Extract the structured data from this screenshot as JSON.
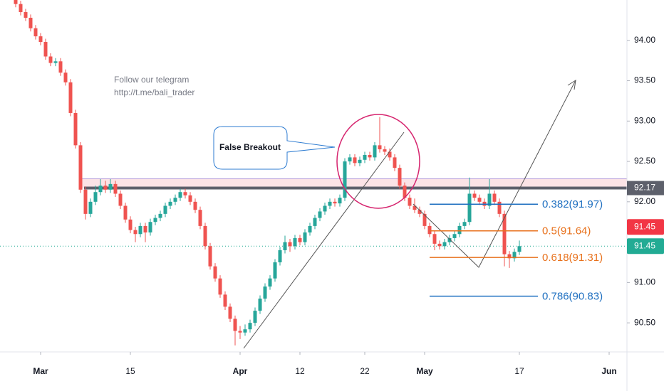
{
  "chart_data": {
    "type": "candlestick",
    "categories": [
      null,
      null,
      null,
      null,
      null,
      "Mar",
      null,
      null,
      null,
      null,
      null,
      null,
      null,
      null,
      null,
      null,
      null,
      null,
      null,
      null,
      null,
      null,
      null,
      "15",
      null,
      null,
      null,
      null,
      null,
      null,
      null,
      null,
      null,
      null,
      null,
      null,
      null,
      null,
      null,
      null,
      null,
      null,
      null,
      null,
      null,
      "Apr",
      null,
      null,
      null,
      null,
      null,
      null,
      null,
      null,
      null,
      null,
      null,
      "12",
      null,
      null,
      null,
      null,
      null,
      null,
      null,
      null,
      null,
      null,
      null,
      null,
      "22",
      null,
      null,
      null,
      null,
      null,
      null,
      null,
      null,
      null,
      null,
      null,
      "May",
      null,
      null,
      null,
      null,
      null,
      null,
      null,
      null,
      null,
      null,
      null,
      null,
      null,
      null,
      null,
      null,
      null,
      null,
      "17",
      null,
      null,
      null,
      null,
      null,
      null,
      null,
      null,
      null,
      null,
      null,
      null,
      null,
      null,
      null,
      null,
      null,
      "Jun",
      null,
      null,
      null
    ],
    "open": [
      94.5,
      94.45,
      94.35,
      94.28,
      94.15,
      94.05,
      93.98,
      93.8,
      93.72,
      93.74,
      93.6,
      93.48,
      93.1,
      92.7,
      92.15,
      91.85,
      92.0,
      92.12,
      92.2,
      92.15,
      92.22,
      92.1,
      91.95,
      91.78,
      91.65,
      91.6,
      91.7,
      91.62,
      91.75,
      91.8,
      91.85,
      91.95,
      92.0,
      92.05,
      92.12,
      92.08,
      92.0,
      91.9,
      91.7,
      91.45,
      91.2,
      91.05,
      90.85,
      90.7,
      90.55,
      90.4,
      90.38,
      90.42,
      90.5,
      90.65,
      90.8,
      90.95,
      91.05,
      91.25,
      91.4,
      91.5,
      91.45,
      91.55,
      91.5,
      91.62,
      91.7,
      91.8,
      91.88,
      91.95,
      92.0,
      91.98,
      92.05,
      92.5,
      92.55,
      92.48,
      92.52,
      92.58,
      92.55,
      92.7,
      92.65,
      92.62,
      92.55,
      92.42,
      92.2,
      92.05,
      91.95,
      91.9,
      91.85,
      91.7,
      91.6,
      91.48,
      91.45,
      91.5,
      91.55,
      91.6,
      91.7,
      91.75,
      92.1,
      92.05,
      92.0,
      91.95,
      92.1,
      92.0,
      91.85,
      91.35,
      91.3,
      91.38,
      null,
      null,
      null,
      null,
      null,
      null,
      null,
      null,
      null,
      null,
      null,
      null,
      null,
      null,
      null,
      null,
      null,
      null,
      null,
      null,
      null
    ],
    "high": [
      94.54,
      94.49,
      94.39,
      94.32,
      94.19,
      94.09,
      94.02,
      93.84,
      93.78,
      93.78,
      93.64,
      93.52,
      93.14,
      92.74,
      92.19,
      92.04,
      92.2,
      92.28,
      92.26,
      92.28,
      92.26,
      92.14,
      91.99,
      91.82,
      91.69,
      91.74,
      91.74,
      91.79,
      91.84,
      91.89,
      91.99,
      92.04,
      92.09,
      92.16,
      92.16,
      92.12,
      92.04,
      91.94,
      91.74,
      91.49,
      91.24,
      91.09,
      90.89,
      90.74,
      90.59,
      90.46,
      90.48,
      90.54,
      90.69,
      90.84,
      90.99,
      91.09,
      91.29,
      91.44,
      91.58,
      91.54,
      91.59,
      91.59,
      91.66,
      91.74,
      91.84,
      91.92,
      91.99,
      92.04,
      92.04,
      92.09,
      92.54,
      92.59,
      92.59,
      92.56,
      92.62,
      92.62,
      92.74,
      93.05,
      92.69,
      92.66,
      92.59,
      92.46,
      92.24,
      92.09,
      92.04,
      91.94,
      91.89,
      91.74,
      91.64,
      91.52,
      91.54,
      91.59,
      91.64,
      91.74,
      91.79,
      92.3,
      92.14,
      92.09,
      92.04,
      92.28,
      92.14,
      92.04,
      91.89,
      91.39,
      91.42,
      91.52,
      null,
      null,
      null,
      null,
      null,
      null,
      null,
      null,
      null,
      null,
      null,
      null,
      null,
      null,
      null,
      null,
      null,
      null,
      null,
      null,
      null
    ],
    "low": [
      94.41,
      94.31,
      94.24,
      94.11,
      94.01,
      93.94,
      93.76,
      93.68,
      93.68,
      93.56,
      93.44,
      93.06,
      92.66,
      92.11,
      91.78,
      91.81,
      91.96,
      92.08,
      92.11,
      92.11,
      92.06,
      91.91,
      91.74,
      91.61,
      91.5,
      91.56,
      91.5,
      91.58,
      91.71,
      91.76,
      91.81,
      91.91,
      91.96,
      92.01,
      92.04,
      91.96,
      91.86,
      91.66,
      91.41,
      91.16,
      91.01,
      90.81,
      90.66,
      90.51,
      90.22,
      90.3,
      90.34,
      90.38,
      90.46,
      90.61,
      90.76,
      90.91,
      91.01,
      91.21,
      91.36,
      91.38,
      91.41,
      91.46,
      91.46,
      91.58,
      91.66,
      91.76,
      91.84,
      91.91,
      91.94,
      91.94,
      92.01,
      92.46,
      92.44,
      92.44,
      92.48,
      92.51,
      92.51,
      92.61,
      92.58,
      92.51,
      92.38,
      92.16,
      92.01,
      91.91,
      91.86,
      91.81,
      91.66,
      91.56,
      91.4,
      91.41,
      91.41,
      91.46,
      91.51,
      91.56,
      91.66,
      91.71,
      92.01,
      91.96,
      91.91,
      91.91,
      91.96,
      91.81,
      91.2,
      91.18,
      91.26,
      91.34,
      null,
      null,
      null,
      null,
      null,
      null,
      null,
      null,
      null,
      null,
      null,
      null,
      null,
      null,
      null,
      null,
      null,
      null,
      null,
      null,
      null
    ],
    "close": [
      94.45,
      94.35,
      94.28,
      94.15,
      94.05,
      93.98,
      93.8,
      93.72,
      93.74,
      93.6,
      93.48,
      93.1,
      92.7,
      92.15,
      91.85,
      92.0,
      92.12,
      92.2,
      92.15,
      92.22,
      92.1,
      91.95,
      91.78,
      91.65,
      91.6,
      91.7,
      91.62,
      91.75,
      91.8,
      91.85,
      91.95,
      92.0,
      92.05,
      92.12,
      92.08,
      92.0,
      91.9,
      91.7,
      91.45,
      91.2,
      91.05,
      90.85,
      90.7,
      90.55,
      90.4,
      90.38,
      90.42,
      90.5,
      90.65,
      90.8,
      90.95,
      91.05,
      91.25,
      91.4,
      91.5,
      91.45,
      91.55,
      91.5,
      91.62,
      91.7,
      91.8,
      91.88,
      91.95,
      92.0,
      91.98,
      92.05,
      92.5,
      92.55,
      92.48,
      92.52,
      92.58,
      92.55,
      92.7,
      92.65,
      92.62,
      92.55,
      92.42,
      92.2,
      92.05,
      91.95,
      91.9,
      91.85,
      91.7,
      91.6,
      91.48,
      91.45,
      91.5,
      91.55,
      91.6,
      91.7,
      91.75,
      92.1,
      92.05,
      92.0,
      91.95,
      92.1,
      92.0,
      91.85,
      91.35,
      91.3,
      91.38,
      91.45,
      null,
      null,
      null,
      null,
      null,
      null,
      null,
      null,
      null,
      null,
      null,
      null,
      null,
      null,
      null,
      null,
      null,
      null,
      null,
      null,
      null
    ],
    "up_color": "#26a69a",
    "down_color": "#ef5350",
    "ylim": [
      90.14,
      94.5
    ],
    "yticks": [
      {
        "value": 90.5,
        "label": "90.50"
      },
      {
        "value": 91,
        "label": "91.00"
      },
      {
        "value": 91.5,
        "label": "91.50"
      },
      {
        "value": 92,
        "label": "92.00"
      },
      {
        "value": 92.5,
        "label": "92.50"
      },
      {
        "value": 93,
        "label": "93.00"
      },
      {
        "value": 93.5,
        "label": "93.50"
      },
      {
        "value": 94,
        "label": "94.00"
      }
    ],
    "resistance": 92.17,
    "price_tags": [
      {
        "value": 91.45,
        "color": "#f23645"
      },
      {
        "value": 91.45,
        "color": "#22ab94"
      }
    ],
    "fib_levels": [
      {
        "label": "0.382(91.97)",
        "value": 91.97,
        "color": "#1e6fc0"
      },
      {
        "label": "0.5(91.64)",
        "value": 91.64,
        "color": "#e8711c"
      },
      {
        "label": "0.618(91.31)",
        "value": 91.31,
        "color": "#e8711c"
      },
      {
        "label": "0.786(90.83)",
        "value": 90.83,
        "color": "#1e6fc0"
      }
    ],
    "annotations": [
      "Follow our telegram",
      "http://t.me/bali_trader",
      "False Breakout"
    ]
  }
}
